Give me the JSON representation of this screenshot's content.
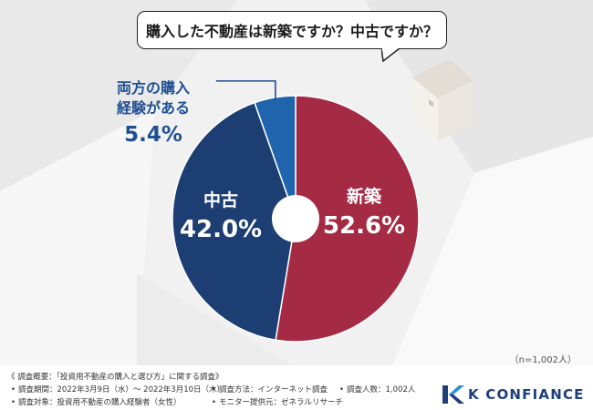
{
  "question": "購入した不動産は新築ですか？中古ですか？",
  "sample_size": "（n=1,002人）",
  "colors": {
    "new": "#a52a44",
    "used": "#1d3e72",
    "both": "#1f64ad",
    "callout": "#1f4f93"
  },
  "chart_data": {
    "type": "pie",
    "donut": true,
    "slices": [
      {
        "label": "新築",
        "value": 52.6,
        "value_text": "52.6%",
        "color": "#a52a44"
      },
      {
        "label": "中古",
        "value": 42.0,
        "value_text": "42.0%",
        "color": "#1d3e72"
      },
      {
        "label_lines": [
          "両方の購入",
          "経験がある"
        ],
        "value": 5.4,
        "value_text": "5.4%",
        "color": "#1f64ad"
      }
    ]
  },
  "footer": {
    "overview": "《 調査概要：「投資用不動産の購入と選び方」に関する調査》",
    "bullet": "•",
    "period": "調査期間：2022年3月9日（水）～ 2022年3月10日（木）",
    "target": "調査対象：投資用不動産の購入経験者（女性）",
    "method": "調査方法：インターネット調査",
    "provider": "モニター提供元：ゼネラルリサーチ",
    "count": "調査人数：1,002人"
  },
  "logo": {
    "text": "K CONFIANCE",
    "icon": "k-logo-icon"
  }
}
